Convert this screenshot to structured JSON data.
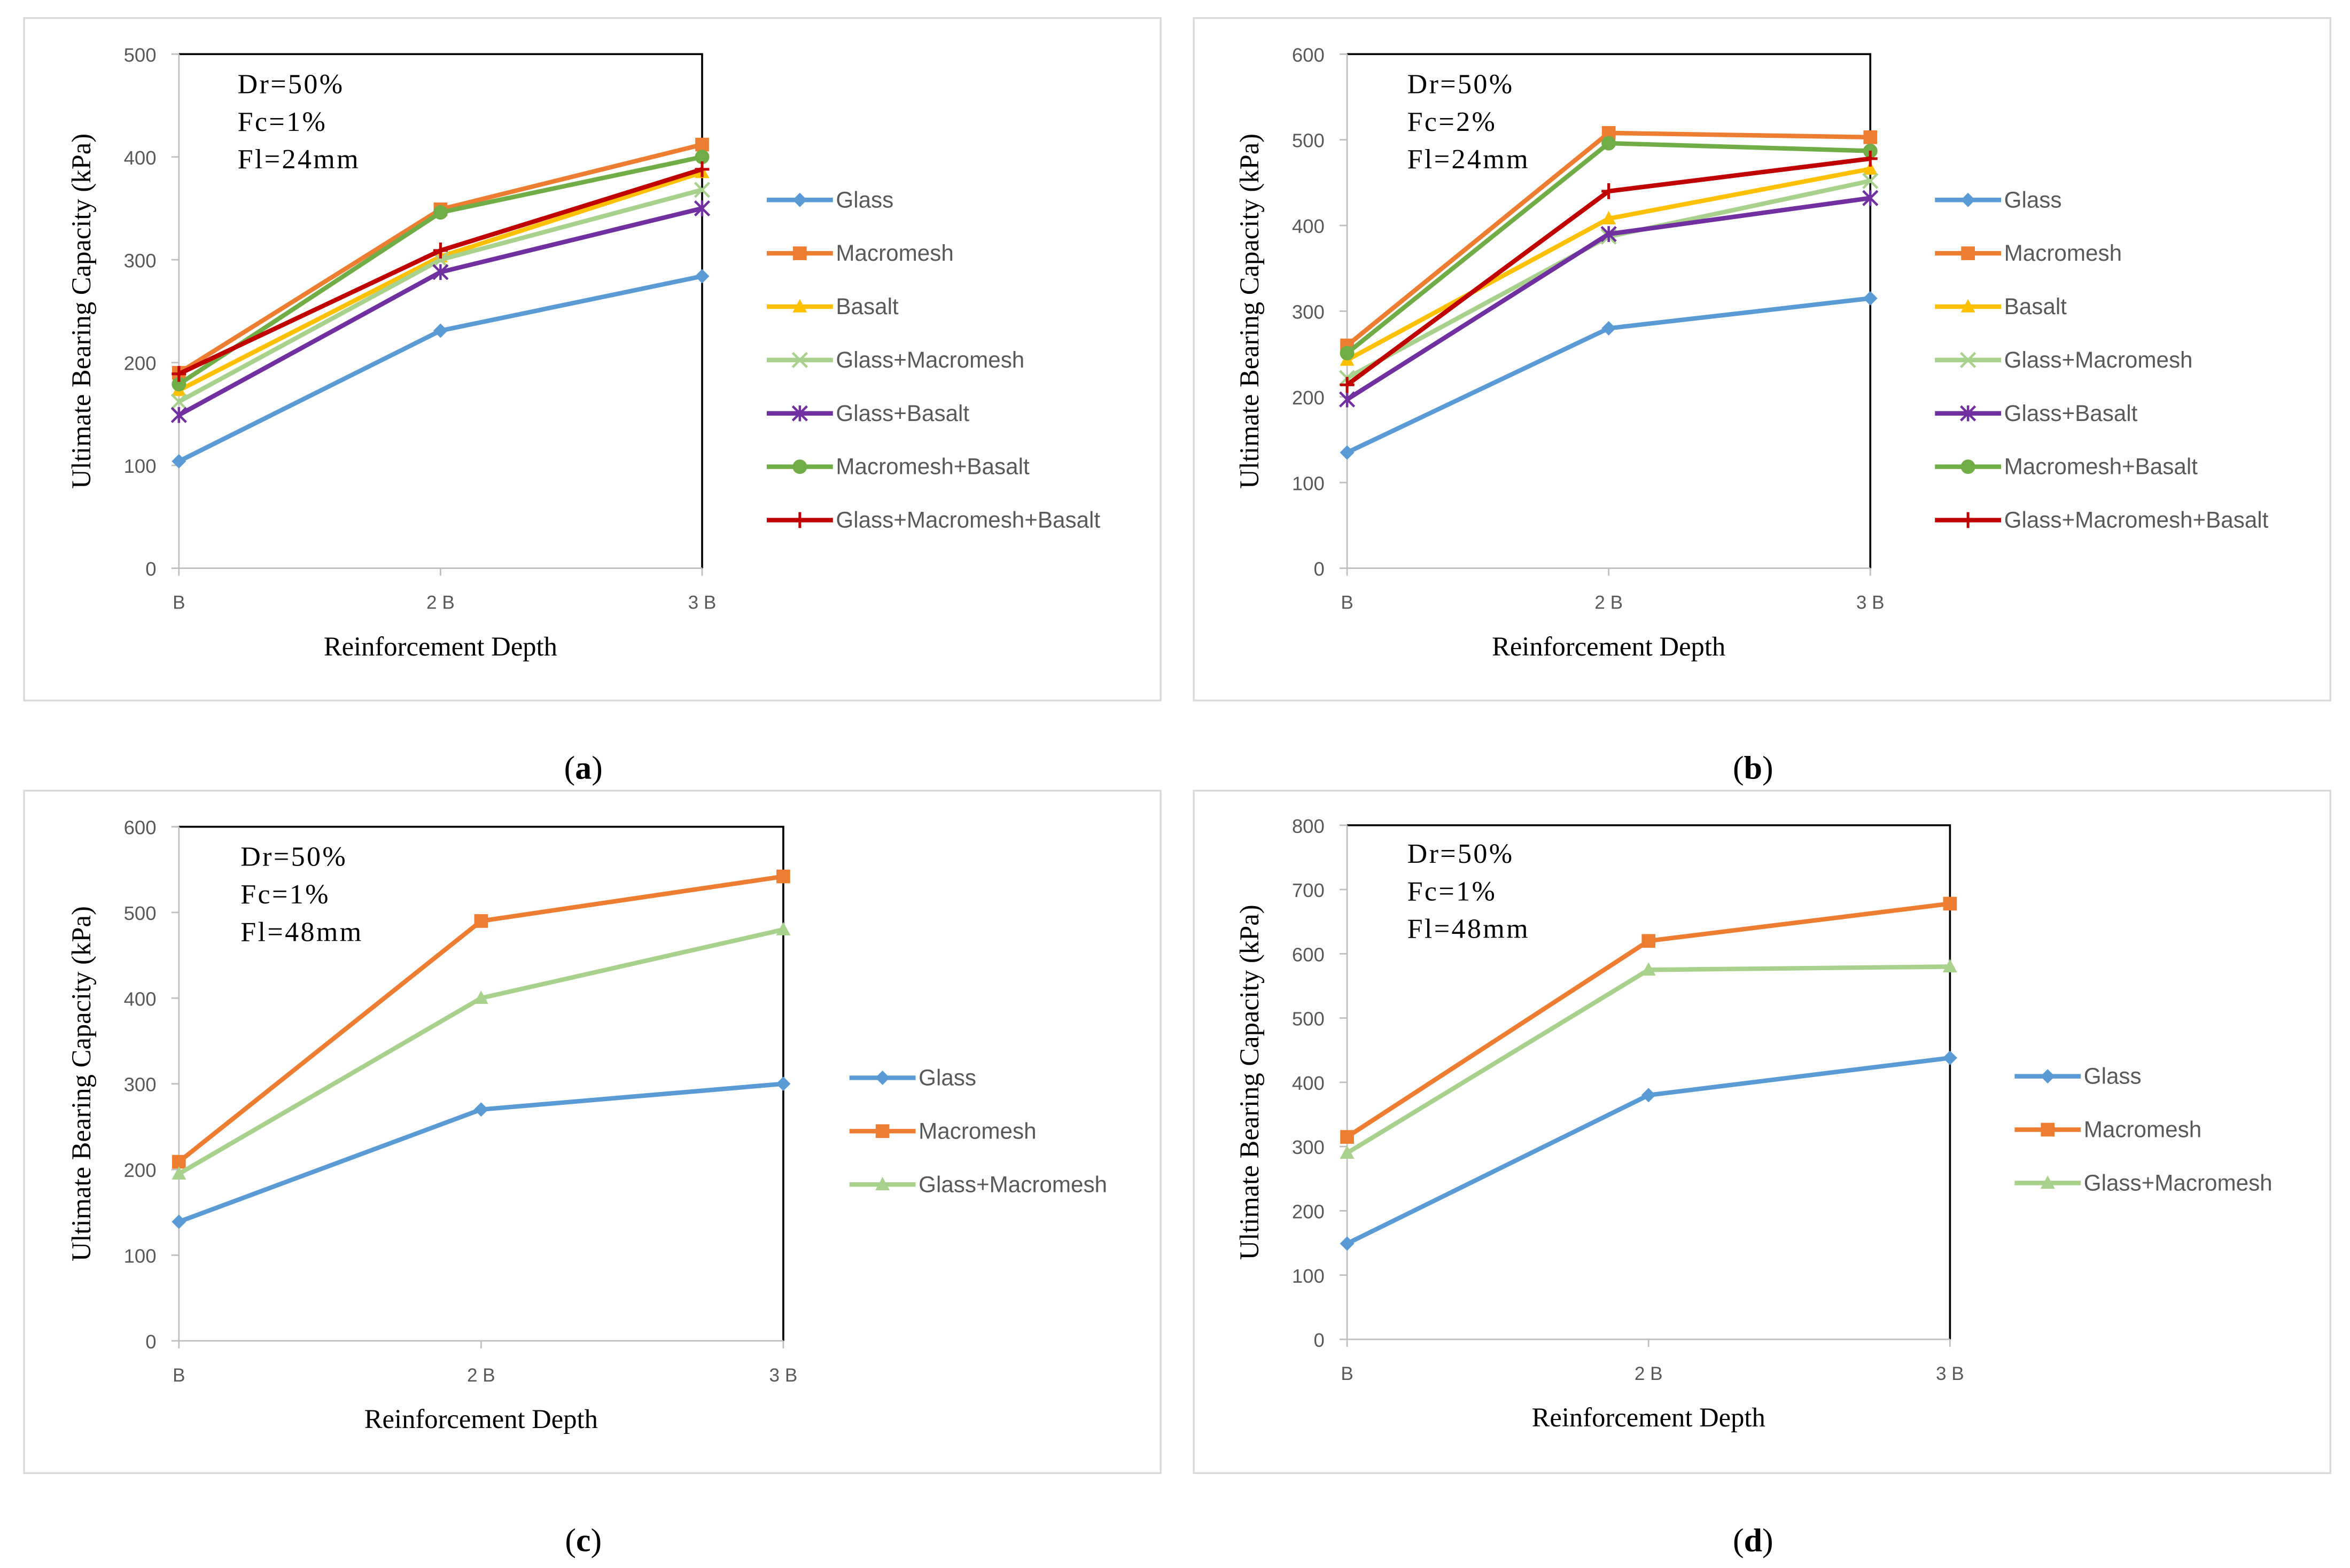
{
  "colors": {
    "Glass": "#5B9BD5",
    "Macromesh": "#ED7D31",
    "Basalt": "#FFC000",
    "Glass+Macromesh": "#A9D18E",
    "Glass+Basalt": "#7030A0",
    "Macromesh+Basalt": "#70AD47",
    "Glass+Macromesh+Basalt": "#C00000"
  },
  "chart_data": [
    {
      "type": "line",
      "panel_label": "a",
      "ylabel": "Ultimate Bearing Capacity (kPa)",
      "xlabel": "Reinforcement Depth",
      "categories": [
        "B",
        "2 B",
        "3 B"
      ],
      "ylim": [
        0,
        500
      ],
      "yticks": [
        "0",
        "100",
        "200",
        "300",
        "400",
        "500"
      ],
      "annotation": [
        "Dr=50%",
        "Fc=1%",
        "Fl=24mm"
      ],
      "series": [
        {
          "name": "Glass",
          "marker": "diamond",
          "values": [
            104,
            231,
            284
          ]
        },
        {
          "name": "Macromesh",
          "marker": "square",
          "values": [
            190,
            349,
            412
          ]
        },
        {
          "name": "Basalt",
          "marker": "triangle",
          "values": [
            173,
            303,
            385
          ]
        },
        {
          "name": "Glass+Macromesh",
          "marker": "x",
          "values": [
            162,
            300,
            368
          ]
        },
        {
          "name": "Glass+Basalt",
          "marker": "star",
          "values": [
            149,
            288,
            350
          ]
        },
        {
          "name": "Macromesh+Basalt",
          "marker": "circle",
          "values": [
            179,
            346,
            400
          ]
        },
        {
          "name": "Glass+Macromesh+Basalt",
          "marker": "plus",
          "values": [
            189,
            309,
            388
          ]
        }
      ]
    },
    {
      "type": "line",
      "panel_label": "b",
      "ylabel": "Ultimate Bearing Capacity (kPa)",
      "xlabel": "Reinforcement Depth",
      "categories": [
        "B",
        "2 B",
        "3 B"
      ],
      "ylim": [
        0,
        600
      ],
      "yticks": [
        "0",
        "100",
        "200",
        "300",
        "400",
        "500",
        "600"
      ],
      "annotation": [
        "Dr=50%",
        "Fc=2%",
        "Fl=24mm"
      ],
      "series": [
        {
          "name": "Glass",
          "marker": "diamond",
          "values": [
            135,
            280,
            315
          ]
        },
        {
          "name": "Macromesh",
          "marker": "square",
          "values": [
            260,
            508,
            503
          ]
        },
        {
          "name": "Basalt",
          "marker": "triangle",
          "values": [
            243,
            408,
            466
          ]
        },
        {
          "name": "Glass+Macromesh",
          "marker": "x",
          "values": [
            222,
            387,
            452
          ]
        },
        {
          "name": "Glass+Basalt",
          "marker": "star",
          "values": [
            197,
            390,
            432
          ]
        },
        {
          "name": "Macromesh+Basalt",
          "marker": "circle",
          "values": [
            251,
            496,
            487
          ]
        },
        {
          "name": "Glass+Macromesh+Basalt",
          "marker": "plus",
          "values": [
            214,
            440,
            478
          ]
        }
      ]
    },
    {
      "type": "line",
      "panel_label": "c",
      "ylabel": "Ultimate Bearing Capacity (kPa)",
      "xlabel": "Reinforcement Depth",
      "categories": [
        "B",
        "2 B",
        "3 B"
      ],
      "ylim": [
        0,
        600
      ],
      "yticks": [
        "0",
        "100",
        "200",
        "300",
        "400",
        "500",
        "600"
      ],
      "annotation": [
        "Dr=50%",
        "Fc=1%",
        "Fl=48mm"
      ],
      "series": [
        {
          "name": "Glass",
          "marker": "diamond",
          "values": [
            139,
            270,
            300
          ]
        },
        {
          "name": "Macromesh",
          "marker": "square",
          "values": [
            209,
            490,
            542
          ]
        },
        {
          "name": "Glass+Macromesh",
          "marker": "triangle",
          "values": [
            195,
            400,
            480
          ]
        }
      ]
    },
    {
      "type": "line",
      "panel_label": "d",
      "ylabel": "Ultimate Bearing Capacity (kPa)",
      "xlabel": "Reinforcement Depth",
      "categories": [
        "B",
        "2 B",
        "3 B"
      ],
      "ylim": [
        0,
        800
      ],
      "yticks": [
        "0",
        "100",
        "200",
        "300",
        "400",
        "500",
        "600",
        "700",
        "800"
      ],
      "annotation": [
        "Dr=50%",
        "Fc=1%",
        "Fl=48mm"
      ],
      "series": [
        {
          "name": "Glass",
          "marker": "diamond",
          "values": [
            149,
            380,
            438
          ]
        },
        {
          "name": "Macromesh",
          "marker": "square",
          "values": [
            315,
            620,
            678
          ]
        },
        {
          "name": "Glass+Macromesh",
          "marker": "triangle",
          "values": [
            290,
            575,
            580
          ]
        }
      ]
    }
  ]
}
